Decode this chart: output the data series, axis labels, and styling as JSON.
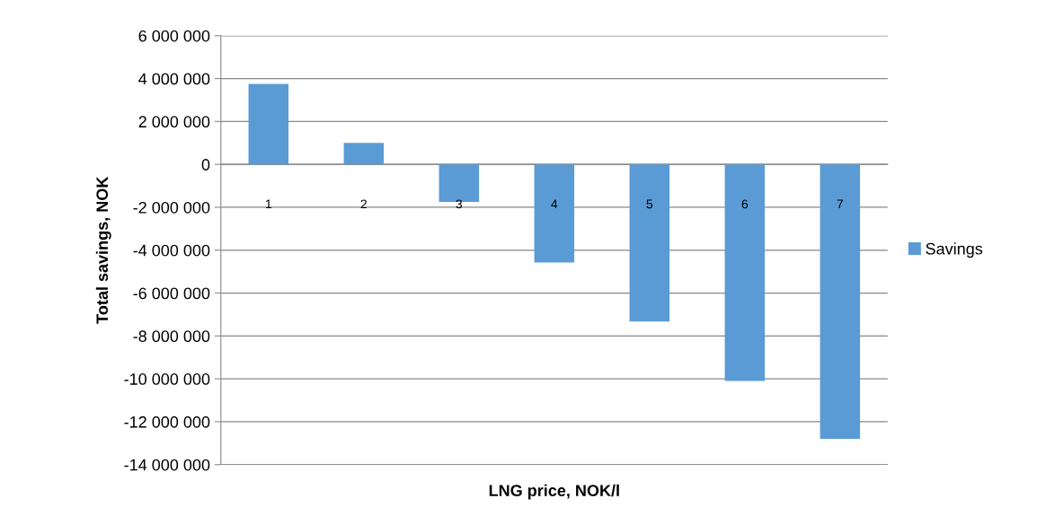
{
  "chart_data": {
    "type": "bar",
    "xlabel": "LNG price, NOK/l",
    "ylabel": "Total savings, NOK",
    "categories": [
      "1",
      "2",
      "3",
      "4",
      "5",
      "6",
      "7"
    ],
    "series": [
      {
        "name": "Savings",
        "color": "#5b9bd5",
        "values": [
          3750000,
          1000000,
          -1750000,
          -4580000,
          -7330000,
          -10100000,
          -12800000
        ]
      }
    ],
    "ylim": [
      -14000000,
      6000000
    ],
    "yticks": [
      {
        "value": -14000000,
        "label": "-14 000 000"
      },
      {
        "value": -12000000,
        "label": "-12 000 000"
      },
      {
        "value": -10000000,
        "label": "-10 000 000"
      },
      {
        "value": -8000000,
        "label": "-8 000 000"
      },
      {
        "value": -6000000,
        "label": "-6 000 000"
      },
      {
        "value": -4000000,
        "label": "-4 000 000"
      },
      {
        "value": -2000000,
        "label": "-2 000 000"
      },
      {
        "value": 0,
        "label": "0"
      },
      {
        "value": 2000000,
        "label": "2 000 000"
      },
      {
        "value": 4000000,
        "label": "4 000 000"
      },
      {
        "value": 6000000,
        "label": "6 000 000"
      }
    ],
    "grid": "y",
    "legend": "right"
  }
}
